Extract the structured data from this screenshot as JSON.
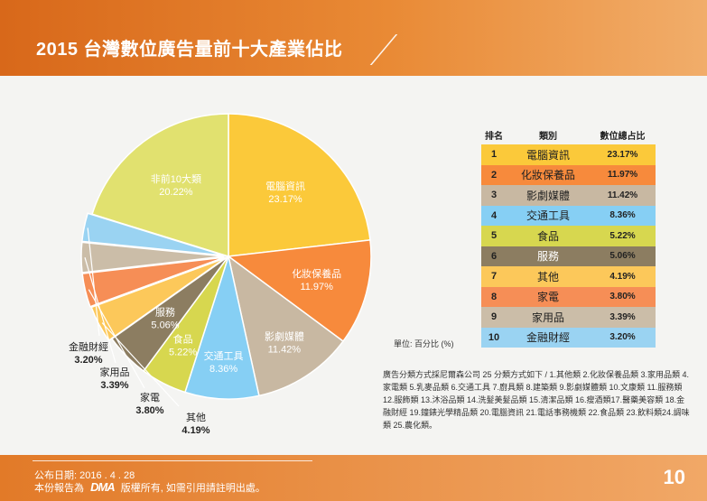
{
  "header": {
    "title": "2015 台灣數位廣告量前十大產業佔比"
  },
  "chart_data": {
    "type": "pie",
    "title": "2015 台灣數位廣告量前十大產業佔比",
    "slices": [
      {
        "label": "電腦資訊",
        "value": 23.17,
        "pct": "23.17%",
        "color": "#fbc93a"
      },
      {
        "label": "化妝保養品",
        "value": 11.97,
        "pct": "11.97%",
        "color": "#f78a3c"
      },
      {
        "label": "影劇媒體",
        "value": 11.42,
        "pct": "11.42%",
        "color": "#c8b8a2"
      },
      {
        "label": "交通工具",
        "value": 8.36,
        "pct": "8.36%",
        "color": "#86cff4"
      },
      {
        "label": "食品",
        "value": 5.22,
        "pct": "5.22%",
        "color": "#d7d74f"
      },
      {
        "label": "服務",
        "value": 5.06,
        "pct": "5.06%",
        "color": "#8c7d61"
      },
      {
        "label": "其他",
        "value": 4.19,
        "pct": "4.19%",
        "color": "#fcc85a"
      },
      {
        "label": "家電",
        "value": 3.8,
        "pct": "3.80%",
        "color": "#f68e56"
      },
      {
        "label": "家用品",
        "value": 3.39,
        "pct": "3.39%",
        "color": "#cbbda8"
      },
      {
        "label": "金融財經",
        "value": 3.2,
        "pct": "3.20%",
        "color": "#9ad3f2"
      },
      {
        "label": "非前10大類",
        "value": 20.22,
        "pct": "20.22%",
        "color": "#e1e16f"
      }
    ],
    "unit_label": "單位: 百分比 (%)"
  },
  "table": {
    "headers": [
      "排名",
      "類別",
      "數位總占比"
    ],
    "rows": [
      {
        "rank": "1",
        "category": "電腦資訊",
        "pct": "23.17%",
        "color": "#fbc93a"
      },
      {
        "rank": "2",
        "category": "化妝保養品",
        "pct": "11.97%",
        "color": "#f78a3c"
      },
      {
        "rank": "3",
        "category": "影劇媒體",
        "pct": "11.42%",
        "color": "#c8b8a2"
      },
      {
        "rank": "4",
        "category": "交通工具",
        "pct": "8.36%",
        "color": "#86cff4"
      },
      {
        "rank": "5",
        "category": "食品",
        "pct": "5.22%",
        "color": "#d7d74f"
      },
      {
        "rank": "6",
        "category": "服務",
        "pct": "5.06%",
        "color": "#8c7d61"
      },
      {
        "rank": "7",
        "category": "其他",
        "pct": "4.19%",
        "color": "#fcc85a"
      },
      {
        "rank": "8",
        "category": "家電",
        "pct": "3.80%",
        "color": "#f68e56"
      },
      {
        "rank": "9",
        "category": "家用品",
        "pct": "3.39%",
        "color": "#cbbda8"
      },
      {
        "rank": "10",
        "category": "金融財經",
        "pct": "3.20%",
        "color": "#9ad3f2"
      }
    ]
  },
  "note": "廣告分類方式採尼爾森公司 25 分類方式如下 / 1.其他類 2.化妝保養品類 3.家用品類 4.家電類 5.乳麥品類 6.交通工具 7.廚具類 8.建築類 9.影劇媒體類 10.文康類 11.服務類 12.服飾類 13.沐浴品類 14.洗髮美髮品類 15.清潔品類 16.瘦酒類17.醫藥美容類 18.金融財經 19.鐘錶光學精品類 20.電腦資訊 21.電話事務機類 22.食品類 23.飲料類24.調味類 25.農化類。",
  "footer": {
    "date": "公布日期: 2016 . 4 . 28",
    "rights_prefix": "本份報告為",
    "logo": "DMA",
    "rights_suffix": "版權所有, 如需引用請註明出處。",
    "page": "10"
  },
  "colors": {
    "header": "#e27a28",
    "background": "#f4f4f2"
  }
}
